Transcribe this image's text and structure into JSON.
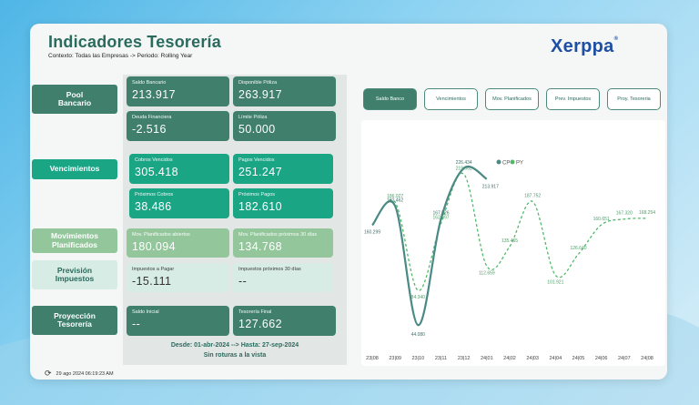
{
  "header": {
    "title": "Indicadores Tesorería",
    "context": "Contexto: Todas las Empresas -> Periodo: Rolling Year",
    "logo": "Xerppa",
    "logo_mark": "®"
  },
  "rows": {
    "pool": {
      "label": "Pool\nBancario"
    },
    "venc": {
      "label": "Vencimientos"
    },
    "mov": {
      "label": "Movimientos\nPlanificados"
    },
    "prev": {
      "label": "Previsión\nImpuestos"
    },
    "proy": {
      "label": "Proyección\nTesorería"
    }
  },
  "kpis": {
    "saldo_bancario": {
      "label": "Saldo Bancario",
      "value": "213.917"
    },
    "disponible_poliza": {
      "label": "Disponible Póliza",
      "value": "263.917"
    },
    "deuda_financiera": {
      "label": "Deuda Financiera",
      "value": "-2.516"
    },
    "limite_poliza": {
      "label": "Límite Póliza",
      "value": "50.000"
    },
    "cobros_vencidos": {
      "label": "Cobros Vencidos",
      "value": "305.418"
    },
    "pagos_vencidos": {
      "label": "Pagos Vencidos",
      "value": "251.247"
    },
    "proximos_cobros": {
      "label": "Próximos Cobros",
      "value": "38.486"
    },
    "proximos_pagos": {
      "label": "Próximos Pagos",
      "value": "182.610"
    },
    "mov_abiertos": {
      "label": "Mov. Planificados abiertos",
      "value": "180.094"
    },
    "mov_proximos": {
      "label": "Mov. Planificados próximos 30 días",
      "value": "134.768"
    },
    "impuestos_pagar": {
      "label": "Impuestos a Pagar",
      "value": "-15.111"
    },
    "impuestos_proximos": {
      "label": "Impuestos próximos 30 días",
      "value": "--"
    },
    "saldo_inicial": {
      "label": "Saldo Inicial",
      "value": "--"
    },
    "tesoreria_final": {
      "label": "Tesorería Final",
      "value": "127.662"
    }
  },
  "footer": {
    "date_range": "Desde: 01-abr-2024 --> Hasta: 27-sep-2024",
    "status": "Sin roturas a la vista",
    "refreshed": "29 ago 2024 06:19:23 AM"
  },
  "tabs": [
    "Saldo Banco",
    "Vencimientos",
    "Mov. Planificados",
    "Prev. Impuestos",
    "Proy. Tesoreria"
  ],
  "active_tab": "Saldo Banco",
  "colors": {
    "accent_dark": "#3f7f6c",
    "accent_teal": "#1aa585",
    "light_green": "#93c79b",
    "cp_line": "#4a8a84",
    "py_line": "#52b96a"
  },
  "chart_data": {
    "type": "line",
    "categories": [
      "23|08",
      "23|09",
      "23|10",
      "23|11",
      "23|12",
      "24|01",
      "24|02",
      "24|03",
      "24|04",
      "24|05",
      "24|06",
      "24|07",
      "24|08"
    ],
    "series": [
      {
        "name": "CP",
        "values": [
          160299,
          182462,
          44080,
          167526,
          226434,
          213917,
          null,
          null,
          null,
          null,
          null,
          null,
          null
        ],
        "labels": [
          "160.299",
          "182.462",
          "44.080",
          "167.526",
          "226.434",
          "213.917"
        ]
      },
      {
        "name": "PY",
        "values": [
          160299,
          186927,
          84340,
          162397,
          219562,
          112659,
          135465,
          187752,
          101921,
          126640,
          160651,
          167320,
          168254
        ],
        "labels": [
          "",
          "186.927",
          "84.340",
          "162.397",
          "219.562",
          "112.659",
          "135.465",
          "187.752",
          "101.921",
          "126.640",
          "160.651",
          "167.320",
          "168.254"
        ]
      }
    ],
    "legend": "top-center",
    "grid": false,
    "ylim": [
      20000,
      240000
    ]
  }
}
